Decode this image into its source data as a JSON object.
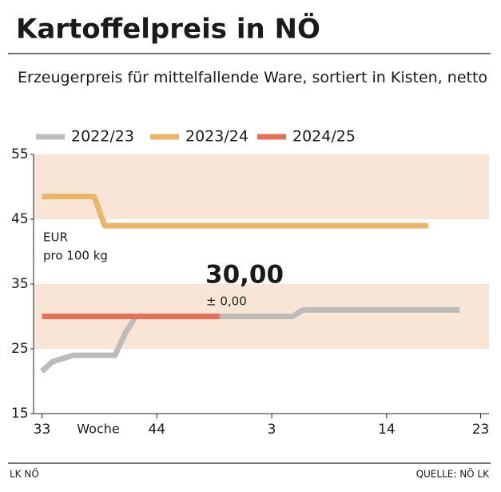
{
  "chart_data": {
    "type": "line",
    "title": "Kartoffelpreis in NÖ",
    "subtitle": "Erzeugerpreis für mittelfallende Ware, sortiert in Kisten, netto",
    "ylabel": [
      "EUR",
      "pro 100 kg"
    ],
    "xlabel": "Woche",
    "series": [
      {
        "name": "2022/23",
        "color": "#bdbcbb",
        "x": [
          33,
          34,
          35,
          36,
          40,
          41,
          42,
          57,
          58,
          73
        ],
        "values": [
          21.5,
          23,
          23.5,
          24,
          24,
          27.5,
          30,
          30,
          31,
          31
        ]
      },
      {
        "name": "2023/24",
        "color": "#e9b66c",
        "x": [
          33,
          38,
          39,
          70
        ],
        "values": [
          48.5,
          48.5,
          44,
          44
        ]
      },
      {
        "name": "2024/25",
        "color": "#e3705a",
        "x": [
          33,
          50
        ],
        "values": [
          30,
          30
        ]
      }
    ],
    "annotations": [
      "30,00",
      "± 0,00"
    ],
    "shaded_ranges": [
      [
        45,
        55
      ],
      [
        25,
        35
      ]
    ],
    "shade_color": "#f8e5d5",
    "xlim": [
      32.2,
      75.8
    ],
    "xticks": [
      33,
      44,
      {
        "value": 55,
        "label": "3"
      },
      {
        "value": 66,
        "label": "14"
      },
      {
        "value": 75,
        "label": "23"
      }
    ],
    "ylim": [
      15,
      55
    ],
    "yticks": [
      15,
      25,
      35,
      45,
      55
    ],
    "grid": false,
    "footer_left": "LK NÖ",
    "footer_right": "QUELLE: NÖ LK"
  }
}
